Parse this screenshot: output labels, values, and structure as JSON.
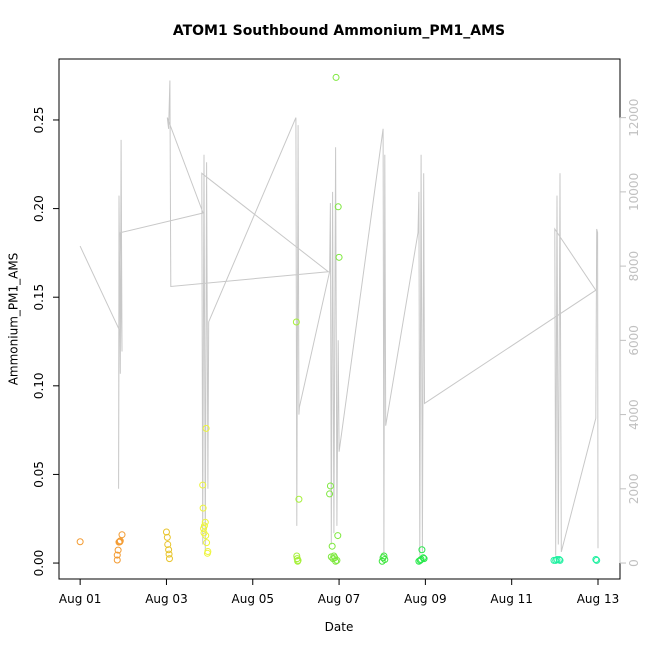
{
  "chart_data": {
    "type": "scatter",
    "title": "ATOM1 Southbound Ammonium_PM1_AMS",
    "xlabel": "Date",
    "ylabel": "Ammonium_PM1_AMS",
    "xlim": [
      0.51,
      13.51
    ],
    "ylim": [
      -0.009,
      0.2844
    ],
    "y2lim": [
      -430,
      13580
    ],
    "xticks": [
      {
        "value": 1,
        "label": "Aug 01"
      },
      {
        "value": 3,
        "label": "Aug 03"
      },
      {
        "value": 5,
        "label": "Aug 05"
      },
      {
        "value": 7,
        "label": "Aug 07"
      },
      {
        "value": 9,
        "label": "Aug 09"
      },
      {
        "value": 11,
        "label": "Aug 11"
      },
      {
        "value": 13,
        "label": "Aug 13"
      }
    ],
    "yticks": [
      {
        "value": 0,
        "label": "0.00"
      },
      {
        "value": 0.05,
        "label": "0.05"
      },
      {
        "value": 0.1,
        "label": "0.10"
      },
      {
        "value": 0.15,
        "label": "0.15"
      },
      {
        "value": 0.2,
        "label": "0.20"
      },
      {
        "value": 0.25,
        "label": "0.25"
      }
    ],
    "y2ticks": [
      0,
      2000,
      4000,
      6000,
      8000,
      10000,
      12000
    ],
    "y2color": "#c0c0c0",
    "series": [
      {
        "type": "line",
        "axis": "y2",
        "color": "#c8c8c8",
        "x": [
          1.0,
          1.9,
          1.89,
          1.9,
          1.93,
          1.95,
          1.97,
          1.93,
          3.85,
          3.02,
          3.05,
          3.08,
          3.1,
          6.75,
          3.82,
          3.84,
          3.87,
          3.9,
          3.93,
          3.96,
          3.98,
          6.0,
          6.02,
          6.05,
          6.07,
          6.08,
          6.78,
          6.8,
          6.82,
          6.85,
          6.88,
          6.92,
          6.95,
          6.98,
          7.0,
          8.02,
          8.04,
          8.06,
          8.08,
          8.83,
          8.85,
          8.87,
          8.9,
          8.93,
          8.96,
          8.98,
          12.95,
          12.0,
          12.02,
          12.05,
          12.08,
          12.12,
          12.15,
          12.95,
          12.97,
          12.99,
          13.0
        ],
        "values": [
          8540,
          6300,
          2000,
          9900,
          5100,
          11400,
          5700,
          8900,
          9430,
          12000,
          11700,
          13000,
          7450,
          7850,
          10500,
          500,
          11000,
          300,
          10800,
          2000,
          6500,
          12000,
          1000,
          11800,
          4000,
          4200,
          7850,
          9700,
          500,
          10000,
          800,
          11200,
          1000,
          6000,
          3000,
          11700,
          200,
          11000,
          3700,
          8900,
          10000,
          200,
          11000,
          300,
          10500,
          4300,
          7350,
          9000,
          200,
          9900,
          500,
          10500,
          300,
          3900,
          9000,
          8900,
          400
        ]
      },
      {
        "color": "#f39b32",
        "x": [
          1.0,
          1.86,
          1.86,
          1.88,
          1.9,
          1.92,
          1.93,
          1.97
        ],
        "values": [
          0.012,
          0.0017,
          0.0045,
          0.0073,
          0.0118,
          0.012,
          0.0125,
          0.016
        ]
      },
      {
        "color": "#e8c42c",
        "x": [
          3.0,
          3.02,
          3.03,
          3.05,
          3.06,
          3.07
        ],
        "values": [
          0.0175,
          0.0145,
          0.0105,
          0.0075,
          0.005,
          0.0025
        ]
      },
      {
        "color": "#eef53a",
        "x": [
          3.84,
          3.85,
          3.86,
          3.87,
          3.88,
          3.9,
          3.91,
          3.92,
          3.93,
          3.95,
          3.96
        ],
        "values": [
          0.044,
          0.031,
          0.0195,
          0.017,
          0.021,
          0.023,
          0.0155,
          0.076,
          0.0115,
          0.0055,
          0.0065
        ]
      },
      {
        "color": "#a6f03a",
        "x": [
          6.01,
          6.02,
          6.03,
          6.04,
          6.05,
          6.07
        ],
        "values": [
          0.136,
          0.004,
          0.0025,
          0.001,
          0.0015,
          0.036
        ]
      },
      {
        "color": "#7de83d",
        "x": [
          6.78,
          6.8,
          6.82,
          6.84,
          6.86,
          6.88,
          6.9,
          6.92,
          6.93,
          6.95,
          6.97,
          6.98,
          7.0
        ],
        "values": [
          0.039,
          0.0435,
          0.0035,
          0.0095,
          0.0025,
          0.004,
          0.003,
          0.001,
          0.274,
          0.0015,
          0.0155,
          0.201,
          0.1725
        ]
      },
      {
        "color": "#3de63d",
        "x": [
          8.0,
          8.02,
          8.04,
          8.06
        ],
        "values": [
          0.001,
          0.003,
          0.004,
          0.002
        ]
      },
      {
        "color": "#27e84a",
        "x": [
          8.85,
          8.88,
          8.9,
          8.92,
          8.95,
          8.97
        ],
        "values": [
          0.001,
          0.0015,
          0.002,
          0.0075,
          0.003,
          0.0025
        ]
      },
      {
        "color": "#1ff0a0",
        "x": [
          11.98,
          12.02,
          12.05,
          12.1,
          12.12,
          12.95,
          12.97
        ],
        "values": [
          0.0015,
          0.0015,
          0.002,
          0.002,
          0.0015,
          0.002,
          0.0015
        ]
      }
    ]
  }
}
